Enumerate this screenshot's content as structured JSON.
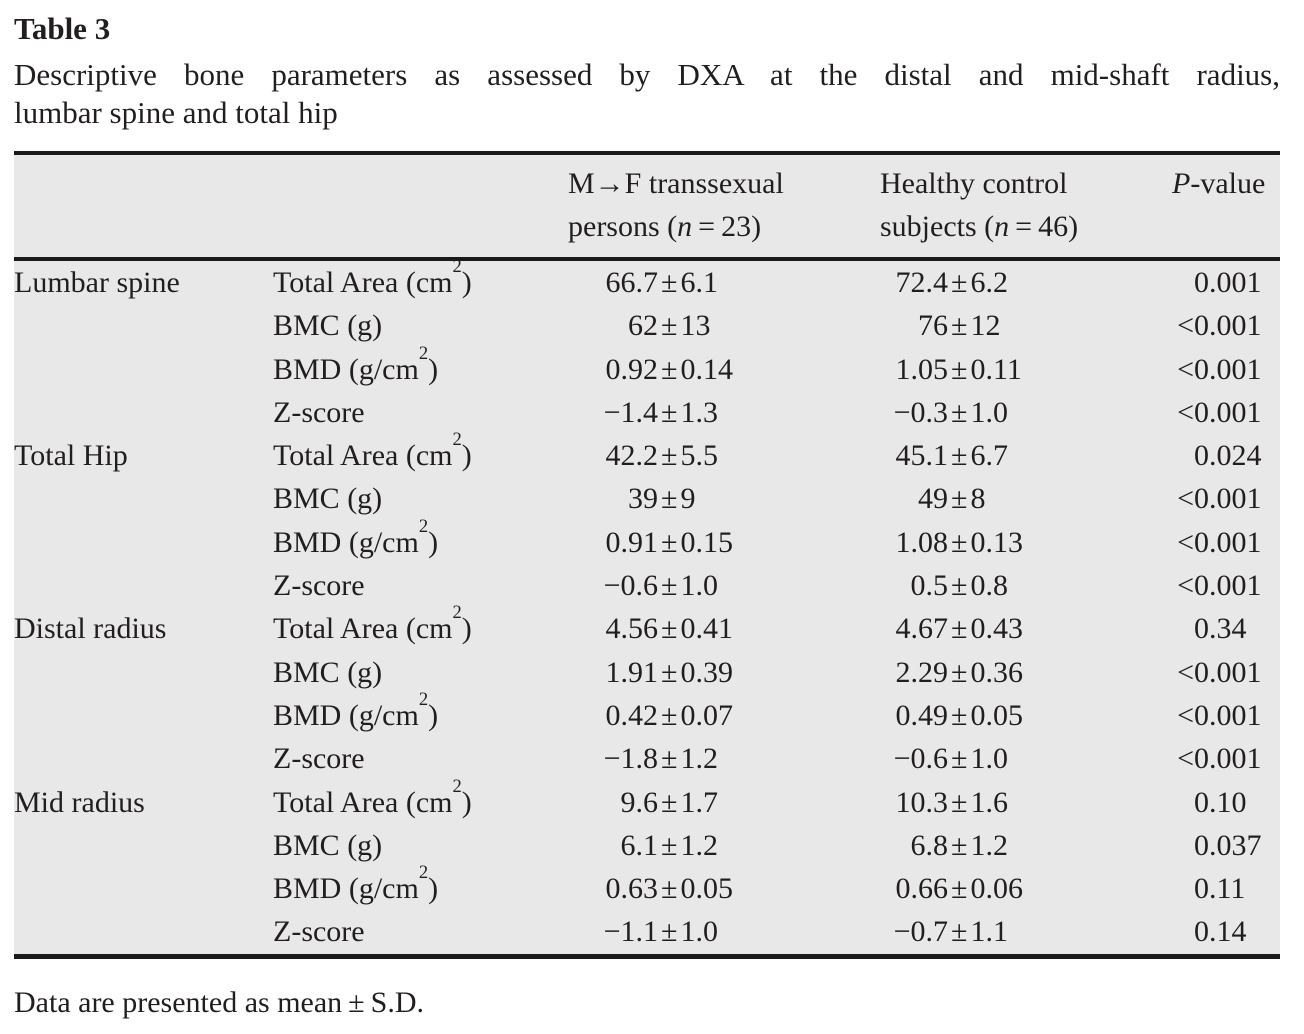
{
  "page": {
    "title": "Table 3",
    "caption_line1": "Descriptive bone parameters as assessed by DXA at the distal and mid-shaft radius,",
    "caption_line2": "lumbar spine and total hip",
    "footnote": "Data are presented as mean ± S.D."
  },
  "table": {
    "background_color": "#e8e8e9",
    "rule_color": "#1a1a1a",
    "pm": "±",
    "header": {
      "group1_line1": "M→F transsexual",
      "group1_line2_pre": "persons (",
      "group1_n": "n",
      "group1_line2_post": " = 23)",
      "group2_line1": "Healthy control",
      "group2_line2_pre": "subjects (",
      "group2_n": "n",
      "group2_line2_post": " = 46)",
      "pcol_italic": "P",
      "pcol_rest": "-value"
    },
    "rows": [
      {
        "section": "Lumbar spine",
        "param_pre": "Total Area (cm",
        "param_sup": "2",
        "param_post": ")",
        "mf_mean": "66.7",
        "mf_sd": "6.1",
        "hc_mean": "72.4",
        "hc_sd": "6.2",
        "p_prefix": "",
        "p_value": "0.001"
      },
      {
        "section": "",
        "param_pre": "BMC (g)",
        "param_sup": "",
        "param_post": "",
        "mf_mean": "62",
        "mf_sd": "13",
        "hc_mean": "76",
        "hc_sd": "12",
        "p_prefix": "<",
        "p_value": "0.001"
      },
      {
        "section": "",
        "param_pre": "BMD (g/cm",
        "param_sup": "2",
        "param_post": ")",
        "mf_mean": "0.92",
        "mf_sd": "0.14",
        "hc_mean": "1.05",
        "hc_sd": "0.11",
        "p_prefix": "<",
        "p_value": "0.001"
      },
      {
        "section": "",
        "param_pre": "Z-score",
        "param_sup": "",
        "param_post": "",
        "mf_mean": "−1.4",
        "mf_sd": "1.3",
        "hc_mean": "−0.3",
        "hc_sd": "1.0",
        "p_prefix": "<",
        "p_value": "0.001"
      },
      {
        "section": "Total Hip",
        "param_pre": "Total Area (cm",
        "param_sup": "2",
        "param_post": ")",
        "mf_mean": "42.2",
        "mf_sd": "5.5",
        "hc_mean": "45.1",
        "hc_sd": "6.7",
        "p_prefix": "",
        "p_value": "0.024"
      },
      {
        "section": "",
        "param_pre": "BMC (g)",
        "param_sup": "",
        "param_post": "",
        "mf_mean": "39",
        "mf_sd": "9",
        "hc_mean": "49",
        "hc_sd": "8",
        "p_prefix": "<",
        "p_value": "0.001"
      },
      {
        "section": "",
        "param_pre": "BMD (g/cm",
        "param_sup": "2",
        "param_post": ")",
        "mf_mean": "0.91",
        "mf_sd": "0.15",
        "hc_mean": "1.08",
        "hc_sd": "0.13",
        "p_prefix": "<",
        "p_value": "0.001"
      },
      {
        "section": "",
        "param_pre": "Z-score",
        "param_sup": "",
        "param_post": "",
        "mf_mean": "−0.6",
        "mf_sd": "1.0",
        "hc_mean": "0.5",
        "hc_sd": "0.8",
        "p_prefix": "<",
        "p_value": "0.001"
      },
      {
        "section": "Distal radius",
        "param_pre": "Total Area (cm",
        "param_sup": "2",
        "param_post": ")",
        "mf_mean": "4.56",
        "mf_sd": "0.41",
        "hc_mean": "4.67",
        "hc_sd": "0.43",
        "p_prefix": "",
        "p_value": "0.34"
      },
      {
        "section": "",
        "param_pre": "BMC (g)",
        "param_sup": "",
        "param_post": "",
        "mf_mean": "1.91",
        "mf_sd": "0.39",
        "hc_mean": "2.29",
        "hc_sd": "0.36",
        "p_prefix": "<",
        "p_value": "0.001"
      },
      {
        "section": "",
        "param_pre": "BMD (g/cm",
        "param_sup": "2",
        "param_post": ")",
        "mf_mean": "0.42",
        "mf_sd": "0.07",
        "hc_mean": "0.49",
        "hc_sd": "0.05",
        "p_prefix": "<",
        "p_value": "0.001"
      },
      {
        "section": "",
        "param_pre": "Z-score",
        "param_sup": "",
        "param_post": "",
        "mf_mean": "−1.8",
        "mf_sd": "1.2",
        "hc_mean": "−0.6",
        "hc_sd": "1.0",
        "p_prefix": "<",
        "p_value": "0.001"
      },
      {
        "section": "Mid radius",
        "param_pre": "Total Area (cm",
        "param_sup": "2",
        "param_post": ")",
        "mf_mean": "9.6",
        "mf_sd": "1.7",
        "hc_mean": "10.3",
        "hc_sd": "1.6",
        "p_prefix": "",
        "p_value": "0.10"
      },
      {
        "section": "",
        "param_pre": "BMC (g)",
        "param_sup": "",
        "param_post": "",
        "mf_mean": "6.1",
        "mf_sd": "1.2",
        "hc_mean": "6.8",
        "hc_sd": "1.2",
        "p_prefix": "",
        "p_value": "0.037"
      },
      {
        "section": "",
        "param_pre": "BMD (g/cm",
        "param_sup": "2",
        "param_post": ")",
        "mf_mean": "0.63",
        "mf_sd": "0.05",
        "hc_mean": "0.66",
        "hc_sd": "0.06",
        "p_prefix": "",
        "p_value": "0.11"
      },
      {
        "section": "",
        "param_pre": "Z-score",
        "param_sup": "",
        "param_post": "",
        "mf_mean": "−1.1",
        "mf_sd": "1.0",
        "hc_mean": "−0.7",
        "hc_sd": "1.1",
        "p_prefix": "",
        "p_value": "0.14"
      }
    ]
  }
}
